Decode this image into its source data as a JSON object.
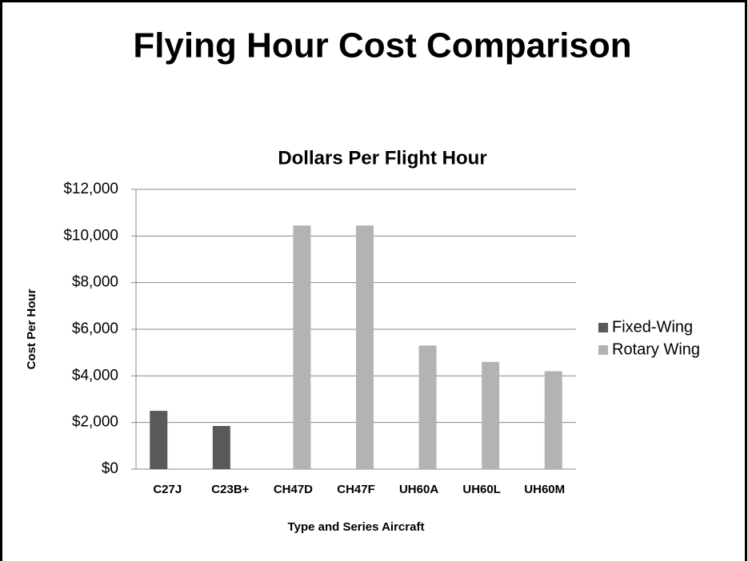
{
  "chart_data": {
    "type": "bar",
    "title": "Flying Hour Cost Comparison",
    "subtitle": "Dollars Per Flight Hour",
    "x_label": "Type and Series Aircraft",
    "y_label": "Cost Per Hour",
    "categories": [
      "C27J",
      "C23B+",
      "CH47D",
      "CH47F",
      "UH60A",
      "UH60L",
      "UH60M"
    ],
    "series": [
      {
        "name": "Fixed-Wing",
        "color": "#595959",
        "values": [
          2500,
          1850,
          null,
          null,
          null,
          null,
          null
        ]
      },
      {
        "name": "Rotary Wing",
        "color": "#b3b3b3",
        "values": [
          null,
          null,
          10450,
          10450,
          5300,
          4600,
          4200
        ]
      }
    ],
    "ylim": [
      0,
      12000
    ],
    "yticks": [
      {
        "value": 0,
        "label": "$0"
      },
      {
        "value": 2000,
        "label": "$2,000"
      },
      {
        "value": 4000,
        "label": "$4,000"
      },
      {
        "value": 6000,
        "label": "$6,000"
      },
      {
        "value": 8000,
        "label": "$8,000"
      },
      {
        "value": 10000,
        "label": "$10,000"
      },
      {
        "value": 12000,
        "label": "$12,000"
      }
    ],
    "grid": true,
    "legend": "right"
  }
}
